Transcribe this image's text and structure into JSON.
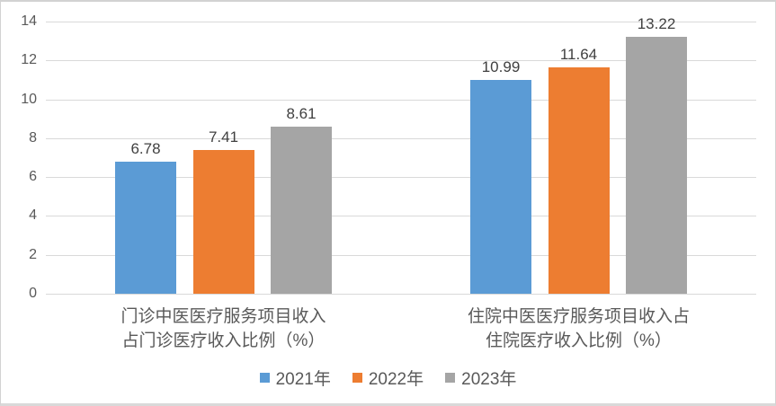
{
  "chart_data": {
    "type": "bar",
    "categories": [
      [
        "门诊中医医疗服务项目收入",
        "占门诊医疗收入比例（%）"
      ],
      [
        "住院中医医疗服务项目收入占",
        "住院医疗收入比例（%）"
      ]
    ],
    "series": [
      {
        "name": "2021年",
        "color": "#5B9BD5",
        "values": [
          6.78,
          10.99
        ]
      },
      {
        "name": "2022年",
        "color": "#ED7D31",
        "values": [
          7.41,
          11.64
        ]
      },
      {
        "name": "2023年",
        "color": "#A5A5A5",
        "values": [
          8.61,
          13.22
        ]
      }
    ],
    "value_labels": [
      [
        "6.78",
        "10.99"
      ],
      [
        "7.41",
        "11.64"
      ],
      [
        "8.61",
        "13.22"
      ]
    ],
    "ylim": [
      0,
      14
    ],
    "ytick_step": 2,
    "yticks": [
      "0",
      "2",
      "4",
      "6",
      "8",
      "10",
      "12",
      "14"
    ],
    "grid": true,
    "legend_position": "bottom",
    "colors": {
      "gridline": "#D9D9D9",
      "tick_text": "#595959",
      "value_text": "#404040",
      "category_text": "#595959",
      "legend_text": "#595959",
      "background": "#FFFFFF",
      "border": "#D2D2D2"
    }
  }
}
